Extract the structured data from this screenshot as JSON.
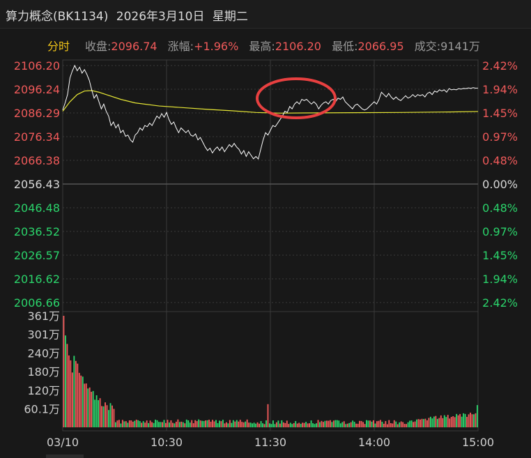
{
  "title": {
    "name": "算力概念(BK1134)",
    "date": "2026年3月10日",
    "weekday": "星期二"
  },
  "info": {
    "tab": "分时",
    "close_label": "收盘:",
    "close_value": "2096.74",
    "change_label": "涨幅:",
    "change_value": "+1.96%",
    "high_label": "最高:",
    "high_value": "2106.20",
    "low_label": "最低:",
    "low_value": "2066.95",
    "volume_label": "成交:",
    "volume_value": "9141万"
  },
  "colors": {
    "up": "#f05a5a",
    "down": "#2bd46b",
    "price_line": "#ffffff",
    "avg_line": "#e7e735",
    "grid": "#3a3a3a",
    "annotation": "#e84040"
  },
  "chart_data": [
    {
      "type": "line",
      "price_ticks": [
        "2106.20",
        "2096.24",
        "2086.29",
        "2076.34",
        "2066.38",
        "2056.43",
        "2046.48",
        "2036.52",
        "2026.57",
        "2016.62",
        "2006.66"
      ],
      "pct_ticks": [
        "2.42%",
        "1.94%",
        "1.45%",
        "0.97%",
        "0.48%",
        "0.00%",
        "0.48%",
        "0.97%",
        "1.45%",
        "1.94%",
        "2.42%"
      ],
      "x_ticks": [
        "03/10",
        "10:30",
        "11:30",
        "14:00",
        "15:00"
      ],
      "ylim": [
        2006.66,
        2106.2
      ],
      "base": 2056.43,
      "series": [
        {
          "role": "price",
          "points": [
            [
              0,
              2087.5
            ],
            [
              1,
              2090.5
            ],
            [
              2,
              2094
            ],
            [
              3,
              2101
            ],
            [
              4,
              2104
            ],
            [
              5,
              2106.2
            ],
            [
              6,
              2104
            ],
            [
              7,
              2105.5
            ],
            [
              8,
              2103
            ],
            [
              9,
              2104.5
            ],
            [
              10,
              2102.5
            ],
            [
              11,
              2100
            ],
            [
              12,
              2096
            ],
            [
              13,
              2092.5
            ],
            [
              14,
              2094
            ],
            [
              15,
              2091
            ],
            [
              16,
              2088
            ],
            [
              17,
              2090
            ],
            [
              18,
              2087
            ],
            [
              19,
              2085
            ],
            [
              20,
              2081
            ],
            [
              21,
              2082.5
            ],
            [
              22,
              2080
            ],
            [
              23,
              2081.5
            ],
            [
              24,
              2078
            ],
            [
              25,
              2079
            ],
            [
              26,
              2076.5
            ],
            [
              27,
              2077
            ],
            [
              28,
              2075
            ],
            [
              29,
              2074
            ],
            [
              30,
              2077
            ],
            [
              31,
              2078
            ],
            [
              32,
              2080
            ],
            [
              33,
              2079
            ],
            [
              34,
              2081
            ],
            [
              35,
              2080.5
            ],
            [
              36,
              2082
            ],
            [
              37,
              2081
            ],
            [
              38,
              2083
            ],
            [
              39,
              2085
            ],
            [
              40,
              2084
            ],
            [
              41,
              2086
            ],
            [
              42,
              2084.5
            ],
            [
              43,
              2086.5
            ],
            [
              44,
              2083.5
            ],
            [
              45,
              2081.5
            ],
            [
              46,
              2082.5
            ],
            [
              47,
              2080
            ],
            [
              48,
              2078
            ],
            [
              49,
              2080
            ],
            [
              50,
              2079
            ],
            [
              51,
              2078
            ],
            [
              52,
              2079
            ],
            [
              53,
              2077
            ],
            [
              54,
              2076.5
            ],
            [
              55,
              2077.5
            ],
            [
              56,
              2075
            ],
            [
              57,
              2076
            ],
            [
              58,
              2074
            ],
            [
              59,
              2072
            ],
            [
              60,
              2070.5
            ],
            [
              61,
              2071.5
            ],
            [
              62,
              2069.5
            ],
            [
              63,
              2071
            ],
            [
              64,
              2072
            ],
            [
              65,
              2070.5
            ],
            [
              66,
              2072
            ],
            [
              67,
              2070
            ],
            [
              68,
              2071.5
            ],
            [
              69,
              2073
            ],
            [
              70,
              2072
            ],
            [
              71,
              2073.5
            ],
            [
              72,
              2072
            ],
            [
              73,
              2071
            ],
            [
              74,
              2069
            ],
            [
              75,
              2070.5
            ],
            [
              76,
              2068
            ],
            [
              77,
              2070
            ],
            [
              78,
              2068.5
            ],
            [
              79,
              2067
            ],
            [
              80,
              2068
            ],
            [
              81,
              2066.95
            ],
            [
              82,
              2071
            ],
            [
              83,
              2075
            ],
            [
              84,
              2078
            ],
            [
              85,
              2077
            ],
            [
              86,
              2079
            ],
            [
              87,
              2081
            ],
            [
              88,
              2080.5
            ],
            [
              89,
              2082
            ],
            [
              90,
              2083.5
            ],
            [
              91,
              2085
            ],
            [
              92,
              2087
            ],
            [
              93,
              2086.5
            ],
            [
              94,
              2089
            ],
            [
              95,
              2088
            ],
            [
              96,
              2090
            ],
            [
              97,
              2091
            ],
            [
              98,
              2090
            ],
            [
              99,
              2092
            ],
            [
              100,
              2091.5
            ],
            [
              101,
              2092
            ],
            [
              102,
              2091
            ],
            [
              103,
              2090
            ],
            [
              104,
              2091
            ],
            [
              105,
              2090
            ],
            [
              106,
              2088
            ],
            [
              107,
              2089.5
            ],
            [
              108,
              2090.5
            ],
            [
              109,
              2091
            ],
            [
              110,
              2090
            ],
            [
              111,
              2091.5
            ],
            [
              112,
              2092
            ],
            [
              113,
              2091
            ],
            [
              114,
              2092.5
            ],
            [
              115,
              2092
            ],
            [
              116,
              2093
            ],
            [
              117,
              2091
            ],
            [
              118,
              2090
            ],
            [
              119,
              2089
            ],
            [
              120,
              2088
            ],
            [
              121,
              2089.5
            ],
            [
              122,
              2090
            ],
            [
              123,
              2089
            ],
            [
              124,
              2088
            ],
            [
              125,
              2087.5
            ],
            [
              126,
              2088
            ],
            [
              127,
              2089
            ],
            [
              128,
              2090
            ],
            [
              129,
              2091
            ],
            [
              130,
              2090
            ],
            [
              131,
              2092
            ],
            [
              132,
              2095
            ],
            [
              133,
              2094
            ],
            [
              134,
              2093
            ],
            [
              135,
              2094.5
            ],
            [
              136,
              2093
            ],
            [
              137,
              2092
            ],
            [
              138,
              2093
            ],
            [
              139,
              2092
            ],
            [
              140,
              2091.5
            ],
            [
              141,
              2092.5
            ],
            [
              142,
              2093.5
            ],
            [
              143,
              2092.5
            ],
            [
              144,
              2093
            ],
            [
              145,
              2094
            ],
            [
              146,
              2093
            ],
            [
              147,
              2094
            ],
            [
              148,
              2093.5
            ],
            [
              149,
              2094
            ],
            [
              150,
              2093
            ],
            [
              151,
              2094.5
            ],
            [
              152,
              2095
            ],
            [
              153,
              2094
            ],
            [
              154,
              2095.5
            ],
            [
              155,
              2095
            ],
            [
              156,
              2096
            ],
            [
              157,
              2095.5
            ],
            [
              158,
              2096
            ],
            [
              159,
              2095
            ],
            [
              160,
              2096.5
            ],
            [
              161,
              2096
            ],
            [
              162,
              2096.2
            ],
            [
              163,
              2096
            ],
            [
              164,
              2096.5
            ],
            [
              165,
              2096.3
            ],
            [
              166,
              2096.6
            ],
            [
              167,
              2096.5
            ],
            [
              168,
              2096.8
            ],
            [
              169,
              2096.6
            ],
            [
              170,
              2096.9
            ],
            [
              171,
              2096.7
            ],
            [
              172,
              2096.74
            ]
          ]
        },
        {
          "role": "average",
          "points": [
            [
              0,
              2087
            ],
            [
              3,
              2091
            ],
            [
              6,
              2094
            ],
            [
              9,
              2095.5
            ],
            [
              12,
              2095.7
            ],
            [
              15,
              2095
            ],
            [
              18,
              2094
            ],
            [
              24,
              2092
            ],
            [
              30,
              2090.5
            ],
            [
              40,
              2089.2
            ],
            [
              50,
              2088.5
            ],
            [
              60,
              2087.8
            ],
            [
              70,
              2087.2
            ],
            [
              80,
              2086.5
            ],
            [
              90,
              2086.2
            ],
            [
              100,
              2086.3
            ],
            [
              120,
              2086.4
            ],
            [
              140,
              2086.5
            ],
            [
              160,
              2086.7
            ],
            [
              172,
              2086.9
            ]
          ]
        }
      ]
    },
    {
      "type": "bar",
      "y_ticks": [
        "361万",
        "301万",
        "240万",
        "180万",
        "120万",
        "60.1万"
      ],
      "ylim": [
        0,
        361
      ],
      "unit": "万"
    }
  ]
}
